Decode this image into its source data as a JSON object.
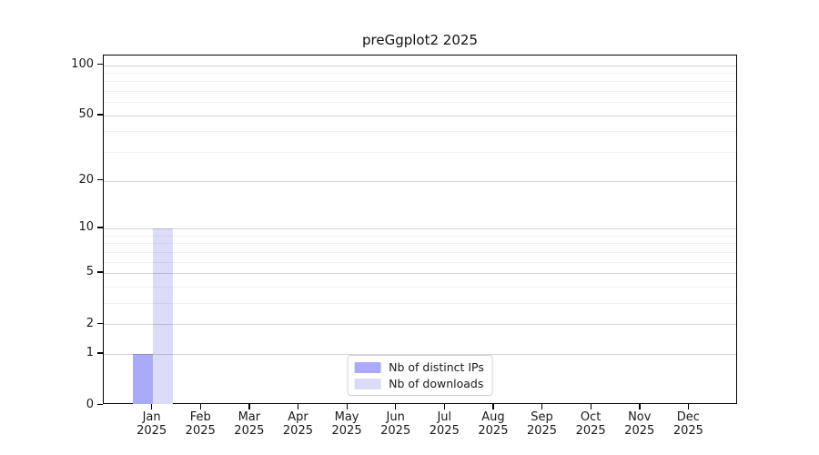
{
  "chart_data": {
    "type": "bar",
    "title": "preGgplot2 2025",
    "categories": [
      "Jan",
      "Feb",
      "Mar",
      "Apr",
      "May",
      "Jun",
      "Jul",
      "Aug",
      "Sep",
      "Oct",
      "Nov",
      "Dec"
    ],
    "x_year_label": "2025",
    "series": [
      {
        "name": "Nb of distinct IPs",
        "color": "#aaaaf8",
        "values": [
          1,
          0,
          0,
          0,
          0,
          0,
          0,
          0,
          0,
          0,
          0,
          0
        ]
      },
      {
        "name": "Nb of downloads",
        "color": "#dcdcf8",
        "values": [
          10,
          0,
          0,
          0,
          0,
          0,
          0,
          0,
          0,
          0,
          0,
          0
        ]
      }
    ],
    "yscale": "log1p",
    "ylim": [
      0,
      114
    ],
    "yticks": [
      0,
      1,
      2,
      5,
      10,
      20,
      50,
      100
    ],
    "yticks_minor": [
      3,
      4,
      6,
      7,
      8,
      9,
      30,
      40,
      60,
      70,
      80,
      90
    ],
    "grid": "horizontal",
    "legend": {
      "position": "bottom-center-inside"
    }
  }
}
